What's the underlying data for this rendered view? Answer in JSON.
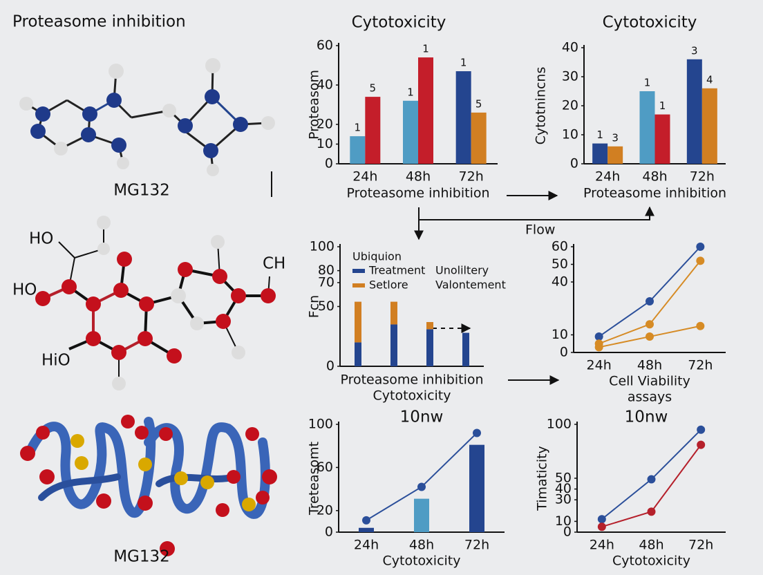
{
  "title": "Proteasome inhibition",
  "molecules": {
    "names": [
      "MG132",
      "MG132"
    ],
    "atoms": [
      "HO",
      "HO",
      "HiO",
      "CH"
    ]
  },
  "flow_label": "Flow",
  "chart_data": [
    {
      "type": "bar",
      "title": "Cytotoxicity",
      "ylabel": "Proteasom",
      "xlabel": [
        "Proteasome inhibition"
      ],
      "categories": [
        "24h",
        "48h",
        "72h"
      ],
      "ylim": [
        0,
        60
      ],
      "yticks": [
        0,
        10,
        20,
        40,
        60
      ],
      "series": [
        {
          "colors": [
            "#4f9cc4",
            "#4f9cc4",
            "#24458f"
          ],
          "values": [
            14,
            32,
            47
          ],
          "bar_labels": [
            "1",
            "1",
            "1"
          ]
        },
        {
          "colors": [
            "#c41e2a",
            "#c41e2a",
            "#d17f22"
          ],
          "values": [
            34,
            54,
            26
          ],
          "bar_labels": [
            "5",
            "1",
            "5"
          ]
        }
      ]
    },
    {
      "type": "bar",
      "title": "Cytotoxicity",
      "ylabel": "Cytotnincns",
      "xlabel": [
        "Proteasome inhibition"
      ],
      "categories": [
        "24h",
        "48h",
        "72h"
      ],
      "ylim": [
        0,
        40
      ],
      "yticks": [
        0,
        10,
        20,
        30,
        40
      ],
      "series": [
        {
          "colors": [
            "#24458f",
            "#4f9cc4",
            "#24458f"
          ],
          "values": [
            7,
            25,
            36
          ],
          "bar_labels": [
            "1",
            "1",
            "3"
          ]
        },
        {
          "colors": [
            "#d17f22",
            "#c41e2a",
            "#d17f22"
          ],
          "values": [
            6,
            17,
            26
          ],
          "bar_labels": [
            "3",
            "1",
            "4"
          ]
        }
      ]
    },
    {
      "type": "bar",
      "stacked": true,
      "ylabel": "Fcn",
      "xlabel": [
        "Proteasome inhibition",
        "Cytotoxicity"
      ],
      "categories": [
        null,
        null,
        null,
        null
      ],
      "ylim": [
        0,
        100
      ],
      "yticks": [
        0,
        50,
        70,
        80,
        100
      ],
      "legend_title": "Ubiquion",
      "legend_notes": [
        "Unoliltery",
        "Valontement"
      ],
      "series": [
        {
          "name": "Treatment",
          "color": "#24458f",
          "values": [
            20,
            35,
            31,
            28
          ]
        },
        {
          "name": "Setlore",
          "color": "#d17f22",
          "values": [
            34,
            19,
            6,
            null
          ]
        }
      ]
    },
    {
      "type": "line",
      "xlabel": [
        "Cell Viability",
        "assays"
      ],
      "categories": [
        "24h",
        "48h",
        "72h"
      ],
      "ylim": [
        0,
        60
      ],
      "yticks": [
        0,
        10,
        40,
        50,
        60
      ],
      "series": [
        {
          "color": "#2b4f9a",
          "values": [
            9,
            29,
            60
          ]
        },
        {
          "color": "#d68b25",
          "values": [
            5,
            16,
            52
          ]
        },
        {
          "color": "#d68b25",
          "values": [
            3,
            9,
            15
          ]
        }
      ]
    },
    {
      "type": "bar",
      "title": "10nw",
      "ylabel": "Treteasomt",
      "xlabel": [
        "Cytotoxicity"
      ],
      "categories": [
        "24h",
        "48h",
        "72h"
      ],
      "ylim": [
        0,
        100
      ],
      "yticks": [
        0,
        20,
        60,
        100
      ],
      "series": [
        {
          "colors": [
            "#24458f",
            "#4f9cc4",
            "#24458f"
          ],
          "values": [
            4,
            31,
            81
          ]
        },
        {
          "type": "line",
          "color": "#2b4f9a",
          "values": [
            11,
            42,
            92
          ]
        }
      ]
    },
    {
      "type": "line",
      "title": "10nw",
      "ylabel": "Timaticity",
      "xlabel": [
        "Cytotoxicity"
      ],
      "categories": [
        "24h",
        "48h",
        "72h"
      ],
      "ylim": [
        0,
        100
      ],
      "yticks": [
        0,
        10,
        30,
        40,
        50,
        100
      ],
      "series": [
        {
          "color": "#2b4f9a",
          "values": [
            12,
            49,
            95
          ]
        },
        {
          "color": "#b5202b",
          "values": [
            5,
            19,
            81
          ]
        }
      ]
    }
  ]
}
